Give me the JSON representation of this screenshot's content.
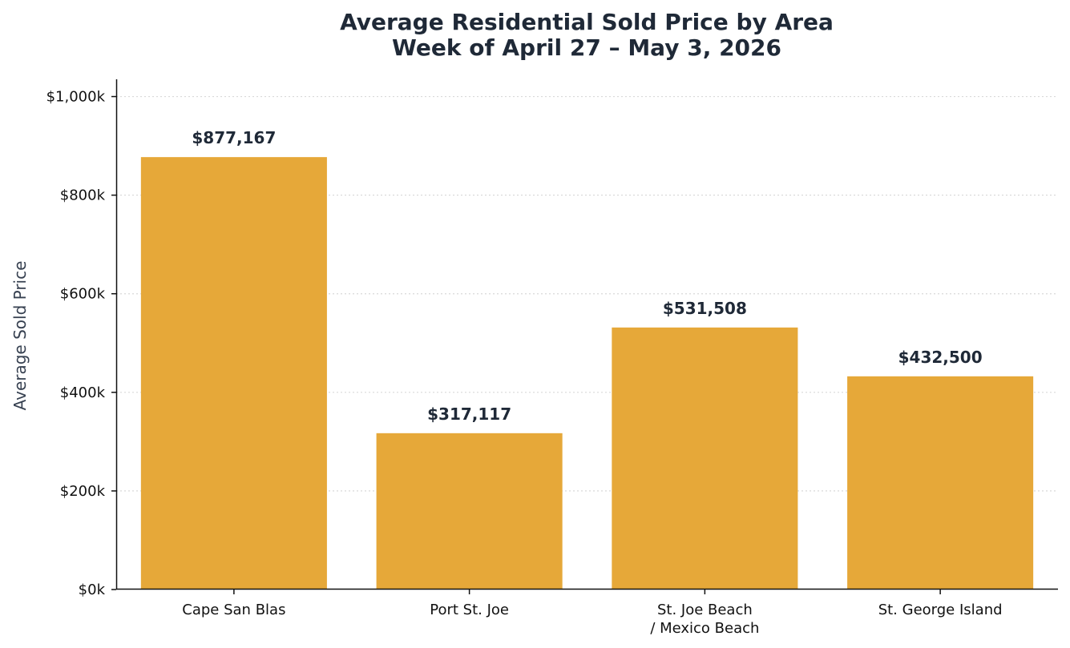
{
  "chart_data": {
    "type": "bar",
    "title": [
      "Average Residential Sold Price by Area",
      "Week of April 27 – May 3, 2026"
    ],
    "xlabel": "",
    "ylabel": "Average Sold Price",
    "categories": [
      [
        "Cape San Blas"
      ],
      [
        "Port St. Joe"
      ],
      [
        "St. Joe Beach",
        "/ Mexico Beach"
      ],
      [
        "St. George Island"
      ]
    ],
    "values": [
      877167,
      317117,
      531508,
      432500
    ],
    "value_labels": [
      "$877,167",
      "$317,117",
      "$531,508",
      "$432,500"
    ],
    "ylim": [
      0,
      1035000
    ],
    "yticks": [
      0,
      200000,
      400000,
      600000,
      800000,
      1000000
    ],
    "ytick_labels": [
      "$0k",
      "$200k",
      "$400k",
      "$600k",
      "$800k",
      "$1,000k"
    ],
    "grid": "horizontal dotted",
    "bar_color": "#e6a839",
    "text_color": "#1f2937"
  }
}
